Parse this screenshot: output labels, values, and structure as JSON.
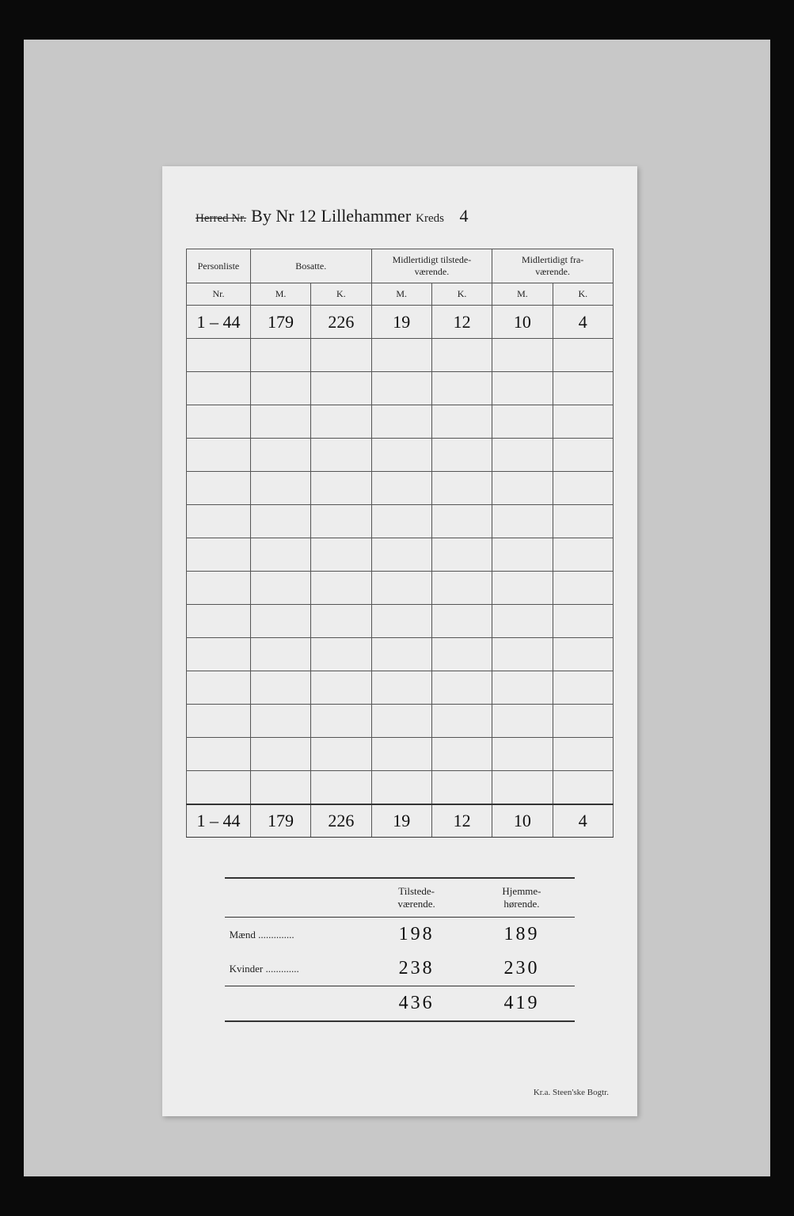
{
  "header": {
    "herred_label": "Herred Nr.",
    "by_prefix": "By Nr",
    "by_number": "12",
    "by_name": "Lillehammer",
    "kreds_label": "Kreds",
    "kreds_value": "4"
  },
  "columns": {
    "personliste": "Personliste",
    "personliste_sub": "Nr.",
    "bosatte": "Bosatte.",
    "tilstede": "Midlertidigt tilstede-\nværende.",
    "fravaerende": "Midlertidigt fra-\nværende.",
    "m": "M.",
    "k": "K."
  },
  "rows": [
    {
      "nr": "1 – 44",
      "bosatte_m": "179",
      "bosatte_k": "226",
      "til_m": "19",
      "til_k": "12",
      "fra_m": "10",
      "fra_k": "4"
    }
  ],
  "empty_row_count": 14,
  "totals": {
    "nr": "1 – 44",
    "bosatte_m": "179",
    "bosatte_k": "226",
    "til_m": "19",
    "til_k": "12",
    "fra_m": "10",
    "fra_k": "4"
  },
  "summary": {
    "head_tilstede": "Tilstede-\nværende.",
    "head_hjemme": "Hjemme-\nhørende.",
    "maend_label": "Mænd",
    "kvinder_label": "Kvinder",
    "maend_tilstede": "198",
    "maend_hjemme": "189",
    "kvinder_tilstede": "238",
    "kvinder_hjemme": "230",
    "total_tilstede": "436",
    "total_hjemme": "419"
  },
  "printer": "Kr.a.  Steen'ske Bogtr.",
  "style": {
    "page_bg": "#0a0a0a",
    "photo_bg": "#c8c8c8",
    "doc_bg": "#ededed",
    "line_color": "#555555",
    "strong_line": "#333333",
    "text_color": "#222222",
    "hand_color": "#101010",
    "printed_font": "Times New Roman",
    "hand_font": "Brush Script MT",
    "printed_fontsize": 13,
    "hand_fontsize": 22,
    "doc_width": 600,
    "doc_height": 1200
  }
}
